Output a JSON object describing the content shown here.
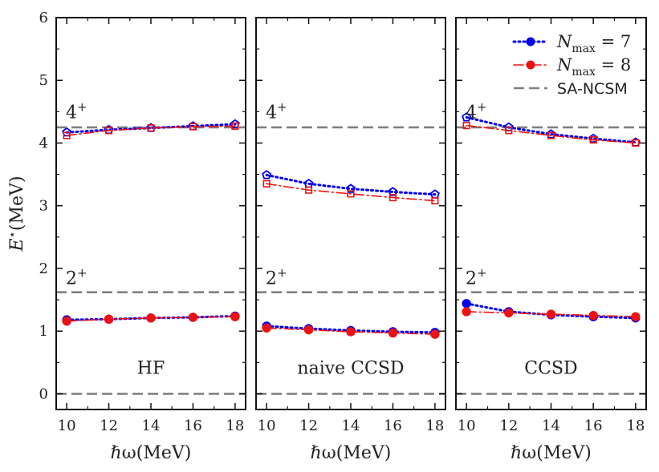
{
  "chart_data": {
    "type": "line",
    "ylabel_main": "E",
    "ylabel_sup": "⋆",
    "ylabel_unit": "(MeV)",
    "xlabel": "ℏω(MeV)",
    "ylim": [
      -0.25,
      6
    ],
    "xlim": [
      9.5,
      18.5
    ],
    "x_ticks": [
      10,
      12,
      14,
      16,
      18
    ],
    "y_ticks": [
      0,
      1,
      2,
      3,
      4,
      5,
      6
    ],
    "x": [
      10,
      12,
      14,
      16,
      18
    ],
    "state_labels": [
      {
        "label": "4",
        "sup": "+",
        "y": 4.5
      },
      {
        "label": "2",
        "sup": "+",
        "y": 1.85
      }
    ],
    "reference": {
      "name": "SA-NCSM",
      "values": [
        0,
        1.62,
        4.25
      ],
      "color": "#808080"
    },
    "series_styles": [
      {
        "name": "N",
        "sub": "max",
        "eq": " = 7",
        "color": "#0000ee"
      },
      {
        "name": "N",
        "sub": "max",
        "eq": " = 8",
        "color": "#ee1111"
      }
    ],
    "panels": [
      {
        "title": "HF",
        "series": [
          {
            "name": "Nmax=7",
            "state": "4+",
            "values": [
              4.17,
              4.21,
              4.24,
              4.27,
              4.3
            ]
          },
          {
            "name": "Nmax=8",
            "state": "4+",
            "values": [
              4.12,
              4.2,
              4.24,
              4.26,
              4.27
            ]
          },
          {
            "name": "Nmax=7",
            "state": "2+",
            "values": [
              1.18,
              1.19,
              1.21,
              1.22,
              1.24
            ]
          },
          {
            "name": "Nmax=8",
            "state": "2+",
            "values": [
              1.16,
              1.19,
              1.21,
              1.22,
              1.23
            ]
          }
        ]
      },
      {
        "title": "naive CCSD",
        "series": [
          {
            "name": "Nmax=7",
            "state": "4+",
            "values": [
              3.49,
              3.35,
              3.27,
              3.22,
              3.18
            ]
          },
          {
            "name": "Nmax=8",
            "state": "4+",
            "values": [
              3.35,
              3.25,
              3.19,
              3.13,
              3.08
            ]
          },
          {
            "name": "Nmax=7",
            "state": "2+",
            "values": [
              1.08,
              1.04,
              1.01,
              0.99,
              0.98
            ]
          },
          {
            "name": "Nmax=8",
            "state": "2+",
            "values": [
              1.05,
              1.02,
              0.99,
              0.97,
              0.95
            ]
          }
        ]
      },
      {
        "title": "CCSD",
        "series": [
          {
            "name": "Nmax=7",
            "state": "4+",
            "values": [
              4.41,
              4.25,
              4.14,
              4.07,
              4.01
            ]
          },
          {
            "name": "Nmax=8",
            "state": "4+",
            "values": [
              4.28,
              4.2,
              4.12,
              4.05,
              4.0
            ]
          },
          {
            "name": "Nmax=7",
            "state": "2+",
            "values": [
              1.44,
              1.31,
              1.26,
              1.23,
              1.21
            ]
          },
          {
            "name": "Nmax=8",
            "state": "2+",
            "values": [
              1.31,
              1.29,
              1.27,
              1.25,
              1.23
            ]
          }
        ]
      }
    ],
    "legend_position": "top-right"
  }
}
